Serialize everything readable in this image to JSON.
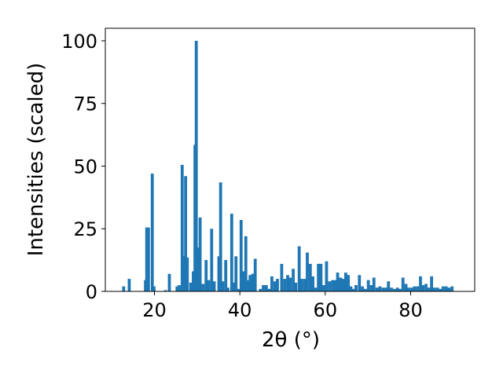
{
  "chart_data": {
    "type": "bar",
    "xlabel": "2θ (°)",
    "ylabel": "Intensities (scaled)",
    "xlim": [
      8.5,
      95
    ],
    "ylim": [
      0,
      105
    ],
    "xticks": [
      20,
      40,
      60,
      80
    ],
    "yticks": [
      0,
      25,
      50,
      75,
      100
    ],
    "bar_color": "#1f77b4",
    "grid": false,
    "bar_width": 0.7,
    "points": [
      [
        12.8,
        2
      ],
      [
        14.1,
        5
      ],
      [
        17.9,
        4.5
      ],
      [
        18.2,
        25.5
      ],
      [
        18.6,
        25.5
      ],
      [
        19.5,
        47
      ],
      [
        19.9,
        2
      ],
      [
        22.6,
        0.5
      ],
      [
        23.5,
        7
      ],
      [
        25.3,
        2
      ],
      [
        25.8,
        2.5
      ],
      [
        26.5,
        50.5
      ],
      [
        26.9,
        14
      ],
      [
        27.3,
        46
      ],
      [
        27.7,
        13.5
      ],
      [
        28.5,
        3.5
      ],
      [
        29.1,
        8
      ],
      [
        29.5,
        58.5
      ],
      [
        29.8,
        100
      ],
      [
        30.2,
        17.5
      ],
      [
        30.7,
        29.5
      ],
      [
        31.4,
        3
      ],
      [
        32.1,
        12.5
      ],
      [
        32.7,
        4.5
      ],
      [
        33.4,
        25
      ],
      [
        34.0,
        4
      ],
      [
        35.1,
        14
      ],
      [
        35.5,
        43.5
      ],
      [
        36.0,
        4
      ],
      [
        36.7,
        12.5
      ],
      [
        37.2,
        1.5
      ],
      [
        38.1,
        31
      ],
      [
        38.6,
        3.5
      ],
      [
        39.1,
        14
      ],
      [
        39.6,
        1
      ],
      [
        40.3,
        28.5
      ],
      [
        40.8,
        8
      ],
      [
        41.4,
        22
      ],
      [
        41.9,
        4.5
      ],
      [
        42.4,
        6.5
      ],
      [
        43.0,
        7
      ],
      [
        43.6,
        13
      ],
      [
        44.8,
        1
      ],
      [
        45.5,
        2.5
      ],
      [
        46.2,
        2.5
      ],
      [
        46.8,
        1
      ],
      [
        47.5,
        6
      ],
      [
        48.2,
        4
      ],
      [
        48.8,
        5
      ],
      [
        49.8,
        11
      ],
      [
        50.5,
        5
      ],
      [
        51.2,
        6.5
      ],
      [
        51.8,
        5.5
      ],
      [
        52.5,
        9
      ],
      [
        53.1,
        3.5
      ],
      [
        53.9,
        18
      ],
      [
        54.5,
        5
      ],
      [
        55.2,
        5
      ],
      [
        55.8,
        15.5
      ],
      [
        56.5,
        11
      ],
      [
        57.1,
        6
      ],
      [
        57.8,
        1.5
      ],
      [
        58.4,
        11
      ],
      [
        59.0,
        11
      ],
      [
        59.6,
        2.5
      ],
      [
        60.3,
        12
      ],
      [
        61.0,
        4
      ],
      [
        61.7,
        4.5
      ],
      [
        62.3,
        4.5
      ],
      [
        62.9,
        7.5
      ],
      [
        63.6,
        5.5
      ],
      [
        64.2,
        5
      ],
      [
        64.8,
        7.5
      ],
      [
        65.4,
        6.5
      ],
      [
        66.0,
        2
      ],
      [
        66.6,
        1
      ],
      [
        67.2,
        2.5
      ],
      [
        68.0,
        6.5
      ],
      [
        68.7,
        2
      ],
      [
        69.4,
        1
      ],
      [
        70.1,
        4.5
      ],
      [
        70.8,
        2.5
      ],
      [
        71.4,
        5.5
      ],
      [
        72.1,
        1.5
      ],
      [
        72.8,
        2
      ],
      [
        73.5,
        1.5
      ],
      [
        74.2,
        1.5
      ],
      [
        74.8,
        4
      ],
      [
        75.5,
        1.5
      ],
      [
        76.2,
        1
      ],
      [
        76.9,
        1.5
      ],
      [
        77.5,
        1
      ],
      [
        78.2,
        5.5
      ],
      [
        78.9,
        3
      ],
      [
        79.5,
        1.5
      ],
      [
        80.2,
        1.5
      ],
      [
        80.9,
        2
      ],
      [
        81.6,
        2
      ],
      [
        82.3,
        6
      ],
      [
        82.9,
        2.5
      ],
      [
        83.6,
        3
      ],
      [
        84.3,
        1.5
      ],
      [
        84.9,
        6
      ],
      [
        85.6,
        1.5
      ],
      [
        86.3,
        1.5
      ],
      [
        87.0,
        1
      ],
      [
        87.6,
        2
      ],
      [
        88.3,
        2
      ],
      [
        89.0,
        1.5
      ],
      [
        89.7,
        2
      ]
    ]
  }
}
